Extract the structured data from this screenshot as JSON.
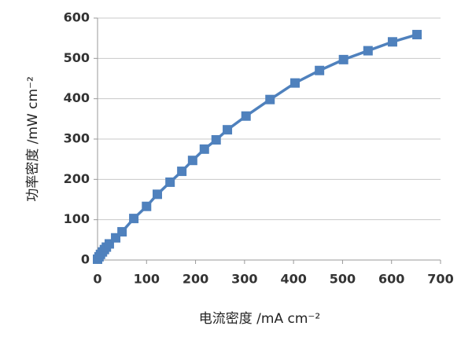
{
  "chart_data": {
    "type": "line",
    "x_label": "电流密度 /mA cm⁻²",
    "y_label": "功率密度 /mW cm⁻²",
    "x": [
      0,
      3,
      6,
      10,
      14,
      18,
      24,
      37,
      50,
      74,
      100,
      122,
      148,
      172,
      194,
      218,
      242,
      265,
      303,
      352,
      403,
      453,
      502,
      552,
      602,
      652
    ],
    "series": [
      {
        "color": "#4f81bd",
        "values": [
          2,
          8,
          14,
          20,
          26,
          32,
          40,
          55,
          70,
          103,
          133,
          163,
          193,
          220,
          247,
          275,
          298,
          323,
          357,
          398,
          439,
          470,
          497,
          519,
          541,
          559
        ]
      }
    ],
    "xlim": [
      0,
      700
    ],
    "xticks": [
      0,
      100,
      200,
      300,
      400,
      500,
      600,
      700
    ],
    "ylim": [
      0,
      600
    ],
    "yticks": [
      0,
      100,
      200,
      300,
      400,
      500,
      600
    ],
    "grid": true
  }
}
